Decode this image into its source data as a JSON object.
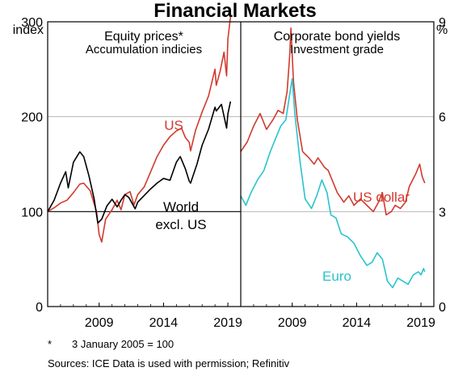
{
  "figure": {
    "title": "Financial Markets",
    "footnote_marker": "*",
    "footnote_text": "3 January 2005 = 100",
    "sources": "Sources:  ICE Data is used with permission; Refinitiv",
    "left_unit": "index",
    "right_unit": "%"
  },
  "chart_data": [
    {
      "type": "line",
      "title": "Equity prices*",
      "subtitle": "Accumulation indicies",
      "ylabel": "index",
      "ylim": [
        0,
        300
      ],
      "yticks": [
        "0",
        "100",
        "200",
        "300"
      ],
      "xlim": [
        2005.0,
        2020.0
      ],
      "xticks": [
        "2009",
        "2014",
        "2019"
      ],
      "grid": true,
      "reference_line": 100,
      "series": [
        {
          "name": "US",
          "color": "#d23a2e",
          "x": [
            2005.0,
            2005.5,
            2006.0,
            2006.5,
            2007.0,
            2007.5,
            2007.8,
            2008.3,
            2008.8,
            2009.0,
            2009.2,
            2009.5,
            2010.0,
            2010.4,
            2010.7,
            2011.0,
            2011.4,
            2011.7,
            2012.0,
            2012.5,
            2013.0,
            2013.5,
            2014.0,
            2014.5,
            2015.0,
            2015.4,
            2015.7,
            2016.0,
            2016.1,
            2016.5,
            2017.0,
            2017.5,
            2018.0,
            2018.1,
            2018.4,
            2018.7,
            2018.9,
            2019.0,
            2019.2
          ],
          "y": [
            100,
            104,
            109,
            112,
            120,
            129,
            130,
            122,
            100,
            76,
            68,
            92,
            102,
            112,
            102,
            118,
            121,
            107,
            118,
            126,
            142,
            158,
            170,
            179,
            185,
            188,
            178,
            173,
            164,
            186,
            205,
            222,
            250,
            233,
            248,
            268,
            243,
            282,
            305
          ]
        },
        {
          "name": "World excl. US",
          "color": "#000000",
          "x": [
            2005.0,
            2005.5,
            2006.0,
            2006.4,
            2006.6,
            2007.0,
            2007.5,
            2007.8,
            2008.2,
            2008.6,
            2008.9,
            2009.2,
            2009.6,
            2010.0,
            2010.4,
            2010.7,
            2011.0,
            2011.3,
            2011.8,
            2012.0,
            2012.5,
            2013.0,
            2013.5,
            2014.0,
            2014.5,
            2015.0,
            2015.3,
            2015.7,
            2016.0,
            2016.1,
            2016.6,
            2017.0,
            2017.5,
            2018.0,
            2018.1,
            2018.5,
            2018.9,
            2019.0,
            2019.2
          ],
          "y": [
            100,
            112,
            130,
            142,
            125,
            152,
            163,
            158,
            138,
            114,
            88,
            92,
            106,
            113,
            105,
            112,
            118,
            115,
            103,
            110,
            117,
            124,
            130,
            135,
            133,
            152,
            158,
            145,
            132,
            130,
            150,
            170,
            187,
            210,
            206,
            213,
            188,
            203,
            216
          ]
        }
      ],
      "annotations": [
        {
          "text": "US",
          "series": "US"
        },
        {
          "text": "World",
          "series": "World excl. US"
        },
        {
          "text": "excl. US",
          "series": "World excl. US"
        }
      ]
    },
    {
      "type": "line",
      "title": "Corporate bond yields",
      "subtitle": "Investment grade",
      "ylabel": "%",
      "ylim": [
        0,
        9
      ],
      "yticks": [
        "0",
        "3",
        "6",
        "9"
      ],
      "xlim": [
        2005.0,
        2020.0
      ],
      "xticks": [
        "2009",
        "2014",
        "2019"
      ],
      "grid": true,
      "series": [
        {
          "name": "US dollar",
          "color": "#d23a2e",
          "x": [
            2005.0,
            2005.5,
            2006.0,
            2006.5,
            2007.0,
            2007.5,
            2007.9,
            2008.3,
            2008.6,
            2008.8,
            2008.9,
            2009.1,
            2009.4,
            2009.8,
            2010.3,
            2010.7,
            2011.0,
            2011.5,
            2011.8,
            2012.0,
            2012.5,
            2013.0,
            2013.4,
            2013.8,
            2014.3,
            2014.8,
            2015.3,
            2015.7,
            2016.0,
            2016.3,
            2016.7,
            2017.0,
            2017.4,
            2017.8,
            2018.1,
            2018.6,
            2018.9,
            2019.1,
            2019.3
          ],
          "y": [
            4.9,
            5.2,
            5.7,
            6.1,
            5.6,
            5.9,
            6.2,
            6.1,
            6.8,
            7.9,
            8.8,
            7.1,
            5.9,
            4.9,
            4.7,
            4.5,
            4.7,
            4.4,
            4.3,
            4.1,
            3.6,
            3.3,
            3.5,
            3.2,
            3.4,
            3.2,
            3.0,
            3.3,
            3.6,
            2.9,
            3.0,
            3.2,
            3.1,
            3.3,
            3.8,
            4.2,
            4.5,
            4.1,
            3.9
          ]
        },
        {
          "name": "Euro",
          "color": "#29c4cc",
          "x": [
            2005.0,
            2005.4,
            2005.8,
            2006.3,
            2006.8,
            2007.3,
            2007.7,
            2008.1,
            2008.5,
            2008.8,
            2009.0,
            2009.2,
            2009.6,
            2010.0,
            2010.5,
            2010.9,
            2011.3,
            2011.7,
            2012.0,
            2012.4,
            2012.8,
            2013.3,
            2013.8,
            2014.3,
            2014.8,
            2015.2,
            2015.6,
            2016.0,
            2016.4,
            2016.8,
            2017.2,
            2017.6,
            2018.0,
            2018.4,
            2018.8,
            2019.0,
            2019.2,
            2019.3
          ],
          "y": [
            3.5,
            3.2,
            3.6,
            4.0,
            4.3,
            4.9,
            5.3,
            5.7,
            5.9,
            6.7,
            7.2,
            6.1,
            4.6,
            3.4,
            3.1,
            3.5,
            4.0,
            3.6,
            2.9,
            2.8,
            2.3,
            2.2,
            2.0,
            1.6,
            1.3,
            1.4,
            1.7,
            1.5,
            0.8,
            0.6,
            0.9,
            0.8,
            0.7,
            1.0,
            1.1,
            1.0,
            1.2,
            1.1
          ]
        }
      ],
      "annotations": [
        {
          "text": "US dollar",
          "series": "US dollar"
        },
        {
          "text": "Euro",
          "series": "Euro"
        }
      ]
    }
  ]
}
